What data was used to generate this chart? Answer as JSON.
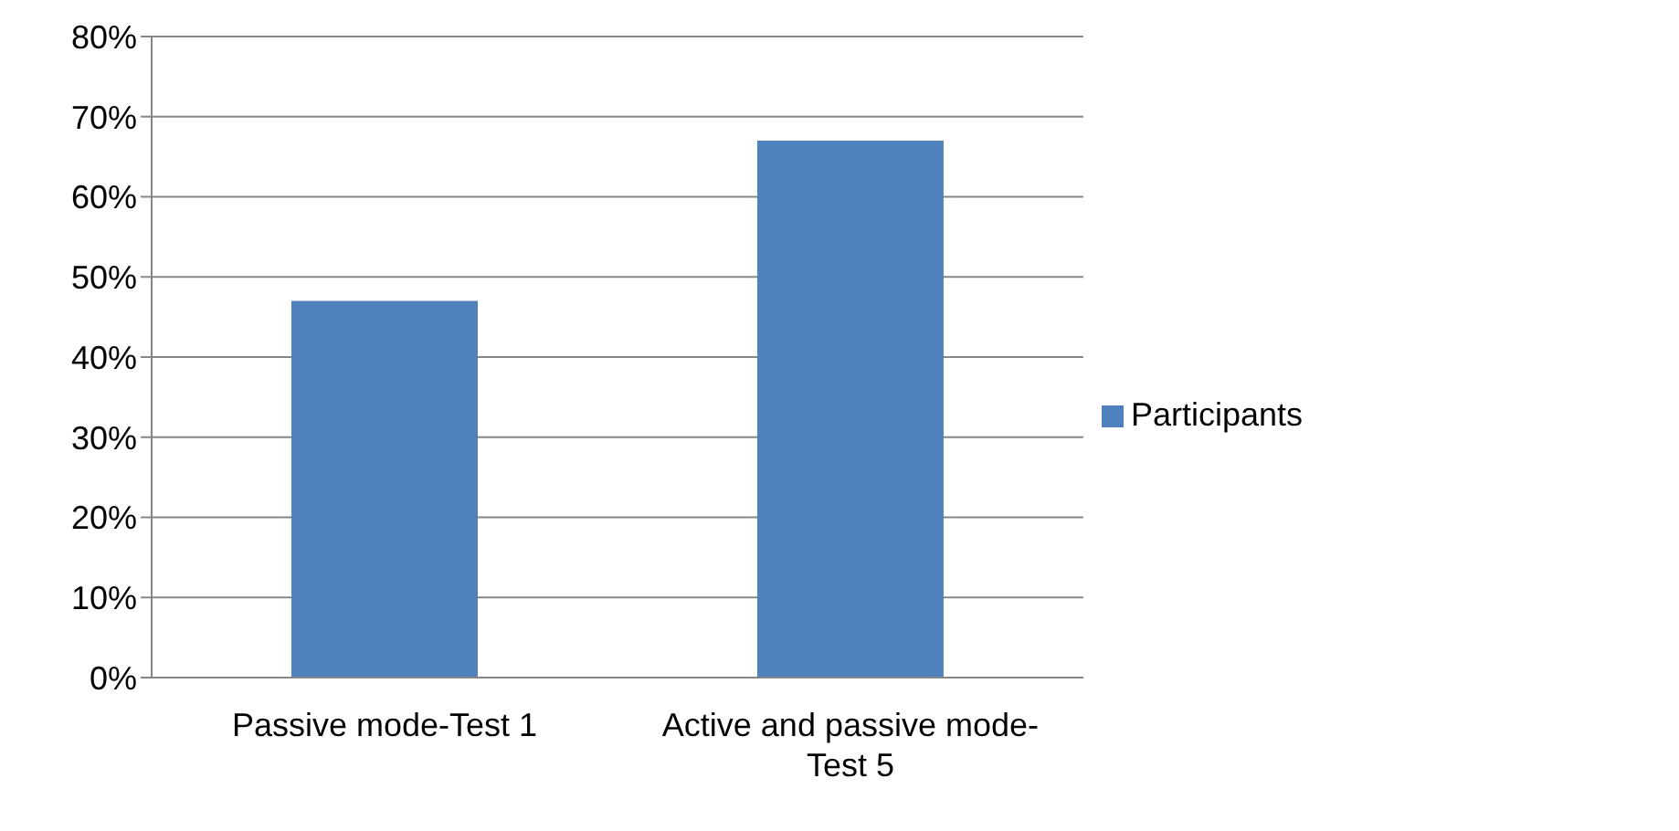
{
  "chart_data": {
    "type": "bar",
    "categories": [
      "Passive mode-Test 1",
      "Active and passive mode-Test 5"
    ],
    "series": [
      {
        "name": "Participants",
        "color": "#4f81bd",
        "values": [
          47,
          67
        ]
      }
    ],
    "ylim": [
      0,
      80
    ],
    "yticks": [
      {
        "value": 0,
        "label": "0%"
      },
      {
        "value": 10,
        "label": "10%"
      },
      {
        "value": 20,
        "label": "20%"
      },
      {
        "value": 30,
        "label": "30%"
      },
      {
        "value": 40,
        "label": "40%"
      },
      {
        "value": 50,
        "label": "50%"
      },
      {
        "value": 60,
        "label": "60%"
      },
      {
        "value": 70,
        "label": "70%"
      },
      {
        "value": 80,
        "label": "80%"
      }
    ],
    "grid": "y",
    "legend": "right"
  }
}
